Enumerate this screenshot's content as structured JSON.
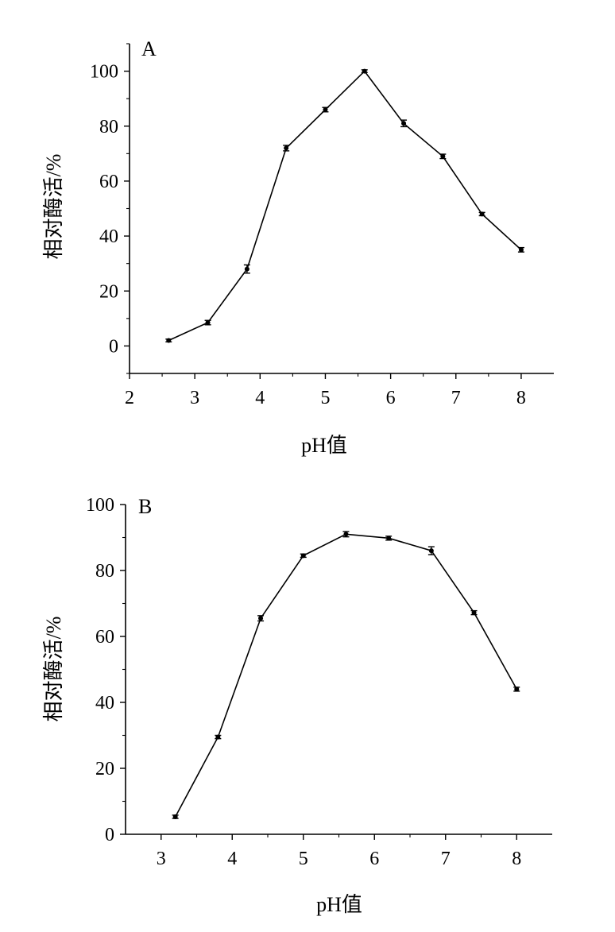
{
  "chart_data": [
    {
      "type": "line",
      "panel_label": "A",
      "xlabel": "pH值",
      "ylabel": "相对酶活/%",
      "xlim": [
        2,
        8.5
      ],
      "ylim": [
        -10,
        110
      ],
      "x_ticks": [
        2,
        3,
        4,
        5,
        6,
        7,
        8
      ],
      "y_ticks": [
        0,
        20,
        40,
        60,
        80,
        100
      ],
      "y_minor_ticks": [
        -10,
        10,
        30,
        50,
        70,
        90,
        110
      ],
      "grid": false,
      "series": [
        {
          "x": [
            2.6,
            3.2,
            3.8,
            4.4,
            5.0,
            5.6,
            6.2,
            6.8,
            7.4,
            8.0
          ],
          "y": [
            2,
            8.5,
            28,
            72,
            86,
            100,
            81,
            69,
            48,
            35
          ],
          "error": [
            0.5,
            0.8,
            1.5,
            1.0,
            0.8,
            0.5,
            1.2,
            0.8,
            0.6,
            0.8
          ]
        }
      ]
    },
    {
      "type": "line",
      "panel_label": "B",
      "xlabel": "pH值",
      "ylabel": "相对酶活/%",
      "xlim": [
        2.5,
        8.5
      ],
      "ylim": [
        0,
        100
      ],
      "x_ticks": [
        3,
        4,
        5,
        6,
        7,
        8
      ],
      "y_ticks": [
        0,
        20,
        40,
        60,
        80,
        100
      ],
      "y_minor_ticks": [
        10,
        30,
        50,
        70,
        90
      ],
      "grid": false,
      "series": [
        {
          "x": [
            3.2,
            3.8,
            4.4,
            5.0,
            5.6,
            6.2,
            6.8,
            7.4,
            8.0
          ],
          "y": [
            5.3,
            29.5,
            65.5,
            84.5,
            91,
            89.8,
            86,
            67.2,
            44
          ],
          "error": [
            0.5,
            0.5,
            0.8,
            0.5,
            0.8,
            0.6,
            1.2,
            0.6,
            0.6
          ]
        }
      ]
    }
  ]
}
